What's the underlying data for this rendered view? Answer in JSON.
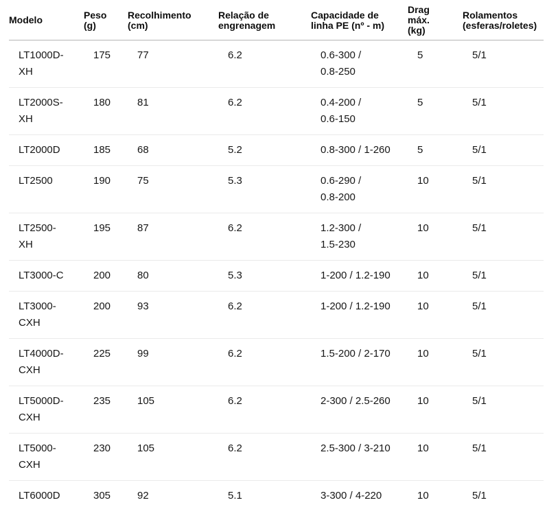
{
  "table": {
    "columns": [
      {
        "key": "modelo",
        "label": "Modelo"
      },
      {
        "key": "peso",
        "label": "Peso\n(g)"
      },
      {
        "key": "recolhimento",
        "label": "Recolhimento\n(cm)"
      },
      {
        "key": "relacao",
        "label": "Relação de\nengrenagem"
      },
      {
        "key": "capacidade",
        "label": "Capacidade de\nlinha PE (nº - m)"
      },
      {
        "key": "drag",
        "label": "Drag\nmáx.\n(kg)"
      },
      {
        "key": "rolamentos",
        "label": "Rolamentos\n(esferas/roletes)"
      }
    ],
    "rows": [
      [
        "LT1000D-\nXH",
        "175",
        "77",
        "6.2",
        "0.6-300 /\n0.8-250",
        "5",
        "5/1"
      ],
      [
        "LT2000S-\nXH",
        "180",
        "81",
        "6.2",
        "0.4-200 /\n0.6-150",
        "5",
        "5/1"
      ],
      [
        "LT2000D",
        "185",
        "68",
        "5.2",
        "0.8-300 / 1-260",
        "5",
        "5/1"
      ],
      [
        "LT2500",
        "190",
        "75",
        "5.3",
        "0.6-290 /\n0.8-200",
        "10",
        "5/1"
      ],
      [
        "LT2500-\nXH",
        "195",
        "87",
        "6.2",
        "1.2-300 /\n1.5-230",
        "10",
        "5/1"
      ],
      [
        "LT3000-C",
        "200",
        "80",
        "5.3",
        "1-200 / 1.2-190",
        "10",
        "5/1"
      ],
      [
        "LT3000-\nCXH",
        "200",
        "93",
        "6.2",
        "1-200 / 1.2-190",
        "10",
        "5/1"
      ],
      [
        "LT4000D-\nCXH",
        "225",
        "99",
        "6.2",
        "1.5-200 / 2-170",
        "10",
        "5/1"
      ],
      [
        "LT5000D-\nCXH",
        "235",
        "105",
        "6.2",
        "2-300 / 2.5-260",
        "10",
        "5/1"
      ],
      [
        "LT5000-\nCXH",
        "230",
        "105",
        "6.2",
        "2.5-300 / 3-210",
        "10",
        "5/1"
      ],
      [
        "LT6000D",
        "305",
        "92",
        "5.1",
        "3-300 / 4-220",
        "10",
        "5/1"
      ]
    ],
    "colors": {
      "header_text": "#0d0d0d",
      "body_text": "#161616",
      "header_border": "#b5b5b5",
      "row_border": "#eaeaea",
      "background": "#ffffff"
    }
  }
}
